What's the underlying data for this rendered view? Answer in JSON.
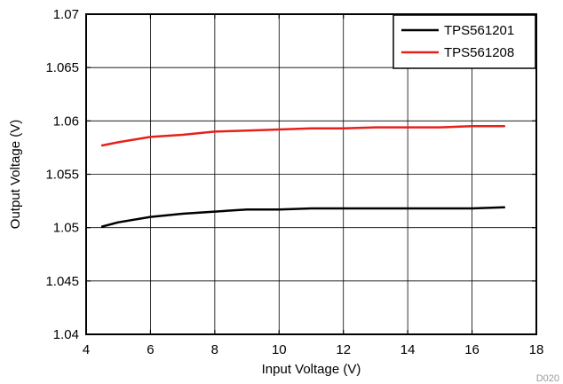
{
  "chart_data": {
    "type": "line",
    "title": "",
    "xlabel": "Input Voltage (V)",
    "ylabel": "Output Voltage (V)",
    "xlim": [
      4,
      18
    ],
    "ylim": [
      1.04,
      1.07
    ],
    "xticks": [
      4,
      6,
      8,
      10,
      12,
      14,
      16,
      18
    ],
    "yticks": [
      1.04,
      1.045,
      1.05,
      1.055,
      1.06,
      1.065,
      1.07
    ],
    "xtick_labels": [
      "4",
      "6",
      "8",
      "10",
      "12",
      "14",
      "16",
      "18"
    ],
    "ytick_labels": [
      "1.04",
      "1.045",
      "1.05",
      "1.055",
      "1.06",
      "1.065",
      "1.07"
    ],
    "grid": true,
    "legend_position": "top-right",
    "figure_code": "D020",
    "series": [
      {
        "name": "TPS561201",
        "color": "#000000",
        "x": [
          4.5,
          5,
          6,
          7,
          8,
          9,
          10,
          11,
          12,
          13,
          14,
          15,
          16,
          17
        ],
        "y": [
          1.0501,
          1.0505,
          1.051,
          1.0513,
          1.0515,
          1.0517,
          1.0517,
          1.0518,
          1.0518,
          1.0518,
          1.0518,
          1.0518,
          1.0518,
          1.0519
        ]
      },
      {
        "name": "TPS561208",
        "color": "#e8201a",
        "x": [
          4.5,
          5,
          6,
          7,
          8,
          9,
          10,
          11,
          12,
          13,
          14,
          15,
          16,
          17
        ],
        "y": [
          1.0577,
          1.058,
          1.0585,
          1.0587,
          1.059,
          1.0591,
          1.0592,
          1.0593,
          1.0593,
          1.0594,
          1.0594,
          1.0594,
          1.0595,
          1.0595
        ]
      }
    ]
  }
}
